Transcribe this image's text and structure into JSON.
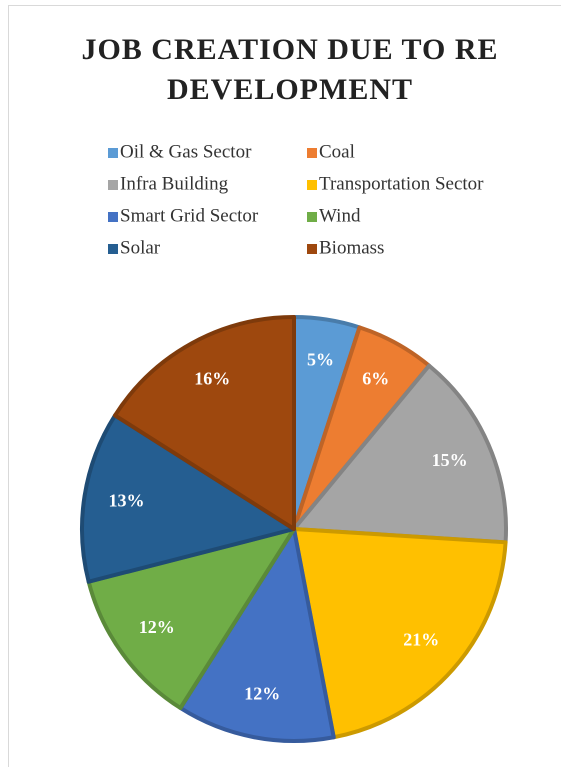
{
  "chart_data": {
    "type": "pie",
    "title": "JOB CREATION DUE TO RE DEVELOPMENT",
    "categories": [
      "Oil & Gas Sector",
      "Coal",
      "Infra Building",
      "Transportation Sector",
      "Smart Grid Sector",
      "Wind",
      "Solar",
      "Biomass"
    ],
    "values": [
      5,
      6,
      15,
      21,
      12,
      12,
      13,
      16
    ],
    "value_labels": [
      "5%",
      "6%",
      "15%",
      "21%",
      "12%",
      "12%",
      "13%",
      "16%"
    ],
    "colors": [
      "#5b9bd5",
      "#ed7d31",
      "#a5a5a5",
      "#ffc000",
      "#4472c4",
      "#70ad47",
      "#255e91",
      "#9e480e"
    ],
    "legend": "top"
  }
}
